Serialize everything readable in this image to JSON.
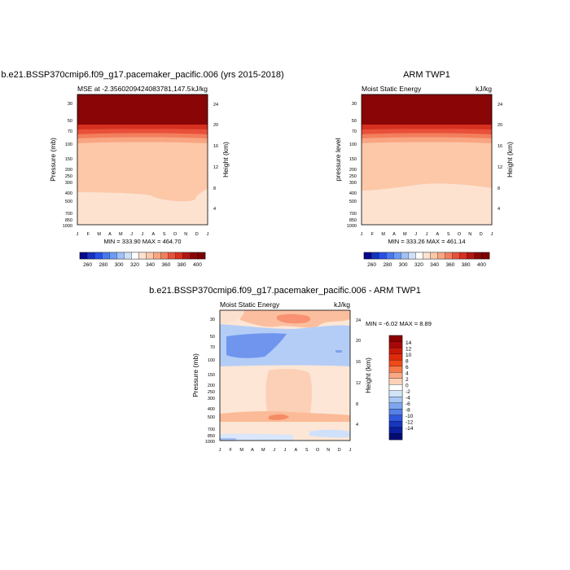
{
  "chart_data": [
    {
      "type": "heatmap",
      "title": "b.e21.BSSP370cmip6.f09_g17.pacemaker_pacific.006 (yrs 2015-2018)",
      "left_label": "MSE at -2.3560209424083781,147.5",
      "right_label": "kJ/kg",
      "ylabel": "Pressure (mb)",
      "ylabel_right": "Height (km)",
      "x": [
        "J",
        "F",
        "M",
        "A",
        "M",
        "J",
        "J",
        "A",
        "S",
        "O",
        "N",
        "D",
        "J"
      ],
      "y_ticks": [
        "30",
        "50",
        "70",
        "100",
        "150",
        "200",
        "250",
        "300",
        "400",
        "500",
        "700",
        "850",
        "1000"
      ],
      "y_ticks_right": [
        "24",
        "20",
        "16",
        "12",
        "8",
        "4"
      ],
      "stats_label": "MIN = 333.90 MAX = 464.70",
      "min": 333.9,
      "max": 464.7,
      "colorbar_labels": [
        "260",
        "280",
        "300",
        "320",
        "340",
        "360",
        "380",
        "400"
      ],
      "contour_levels": [
        250,
        260,
        270,
        280,
        290,
        300,
        310,
        320,
        330,
        340,
        350,
        360,
        370,
        380,
        390,
        400
      ],
      "colors": [
        "#08088a",
        "#1432c0",
        "#2850e6",
        "#4678f0",
        "#6e9af5",
        "#a0c0f8",
        "#cfe0fa",
        "#ffffff",
        "#fde2d0",
        "#fcc8a8",
        "#f9a582",
        "#f37e5e",
        "#e8503a",
        "#d6301f",
        "#b41414",
        "#8a0505",
        "#7a0000"
      ]
    },
    {
      "type": "heatmap",
      "title": "ARM TWP1",
      "left_label": "Moist Static Energy",
      "right_label": "kJ/kg",
      "ylabel": "pressure level",
      "ylabel_right": "Height (km)",
      "x": [
        "J",
        "F",
        "M",
        "A",
        "M",
        "J",
        "J",
        "A",
        "S",
        "O",
        "N",
        "D",
        "J"
      ],
      "y_ticks": [
        "30",
        "50",
        "70",
        "100",
        "150",
        "200",
        "250",
        "300",
        "400",
        "500",
        "700",
        "850",
        "1000"
      ],
      "y_ticks_right": [
        "24",
        "20",
        "16",
        "12",
        "8",
        "4"
      ],
      "stats_label": "MIN = 333.26 MAX = 461.14",
      "min": 333.26,
      "max": 461.14,
      "colorbar_labels": [
        "260",
        "280",
        "300",
        "320",
        "340",
        "360",
        "380",
        "400"
      ]
    },
    {
      "type": "heatmap",
      "title": "b.e21.BSSP370cmip6.f09_g17.pacemaker_pacific.006 - ARM TWP1",
      "left_label": "Moist Static Energy",
      "right_label": "kJ/kg",
      "ylabel": "Pressure (mb)",
      "ylabel_right": "Height (km)",
      "x": [
        "J",
        "F",
        "M",
        "A",
        "M",
        "J",
        "J",
        "A",
        "S",
        "O",
        "N",
        "D",
        "J"
      ],
      "y_ticks": [
        "30",
        "50",
        "70",
        "100",
        "150",
        "200",
        "250",
        "300",
        "400",
        "500",
        "700",
        "850",
        "1000"
      ],
      "y_ticks_right": [
        "24",
        "20",
        "16",
        "12",
        "8",
        "4"
      ],
      "stats_label": "MIN =  -6.02 MAX =   8.89",
      "min": -6.02,
      "max": 8.89,
      "colorbar_labels": [
        "14",
        "12",
        "10",
        "8",
        "6",
        "4",
        "2",
        "0",
        "-2",
        "-4",
        "-6",
        "-8",
        "-10",
        "-12",
        "-14"
      ],
      "colors": [
        "#8a0000",
        "#a80808",
        "#c81808",
        "#e02a0a",
        "#f04a18",
        "#f77848",
        "#fba882",
        "#fdd2b8",
        "#ffffff",
        "#d2e4fa",
        "#a8c8f4",
        "#7ea6ee",
        "#5580e8",
        "#2f58dc",
        "#1636c0",
        "#0b1fa0",
        "#040c74"
      ]
    }
  ]
}
